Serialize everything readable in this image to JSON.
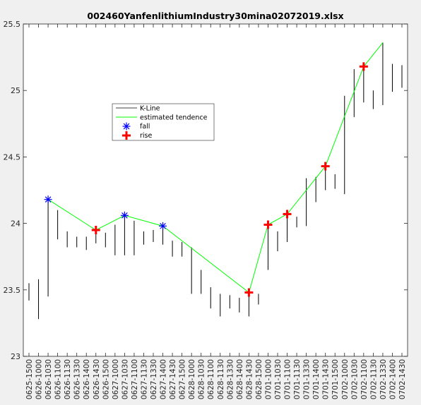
{
  "chart_data": {
    "type": "line",
    "title": "002460YanfenlithiumIndustry30mina02072019.xlsx",
    "xlabel": "",
    "ylabel": "",
    "ylim": [
      23,
      25.5
    ],
    "yticks": [
      23,
      23.5,
      24,
      24.5,
      25,
      25.5
    ],
    "ytick_labels": [
      "23",
      "23.5",
      "24",
      "24.5",
      "25",
      "25.5"
    ],
    "grid": false,
    "legend_placement": "upper-left-center",
    "categories": [
      "0625-1500",
      "0626-1000",
      "0626-1030",
      "0626-1100",
      "0626-1130",
      "0626-1330",
      "0626-1400",
      "0626-1430",
      "0626-1500",
      "0627-1000",
      "0627-1030",
      "0627-1100",
      "0627-1130",
      "0627-1330",
      "0627-1400",
      "0627-1430",
      "0627-1500",
      "0628-1000",
      "0628-1030",
      "0628-1100",
      "0628-1130",
      "0628-1330",
      "0628-1400",
      "0628-1430",
      "0628-1500",
      "0701-1000",
      "0701-1030",
      "0701-1100",
      "0701-1130",
      "0701-1330",
      "0701-1400",
      "0701-1430",
      "0701-1500",
      "0702-1000",
      "0702-1030",
      "0702-1100",
      "0702-1130",
      "0702-1330",
      "0702-1400",
      "0702-1430"
    ],
    "kline": [
      [
        23.42,
        23.55
      ],
      [
        23.28,
        23.58
      ],
      [
        23.45,
        24.18
      ],
      [
        23.88,
        24.1
      ],
      [
        23.82,
        23.94
      ],
      [
        23.82,
        23.9
      ],
      [
        23.8,
        23.9
      ],
      [
        23.85,
        23.98
      ],
      [
        23.82,
        23.93
      ],
      [
        23.76,
        23.99
      ],
      [
        23.76,
        24.05
      ],
      [
        23.76,
        24.02
      ],
      [
        23.84,
        23.94
      ],
      [
        23.86,
        23.95
      ],
      [
        23.84,
        23.98
      ],
      [
        23.75,
        23.87
      ],
      [
        23.75,
        23.86
      ],
      [
        23.47,
        23.82
      ],
      [
        23.47,
        23.65
      ],
      [
        23.36,
        23.52
      ],
      [
        23.3,
        23.47
      ],
      [
        23.36,
        23.46
      ],
      [
        23.33,
        23.44
      ],
      [
        23.3,
        23.48
      ],
      [
        23.39,
        23.47
      ],
      [
        23.65,
        24.0
      ],
      [
        23.79,
        23.94
      ],
      [
        23.86,
        24.1
      ],
      [
        23.97,
        24.05
      ],
      [
        23.98,
        24.34
      ],
      [
        24.16,
        24.35
      ],
      [
        24.25,
        24.43
      ],
      [
        24.26,
        24.37
      ],
      [
        24.22,
        24.96
      ],
      [
        24.8,
        25.16
      ],
      [
        24.91,
        25.17
      ],
      [
        24.86,
        25.0
      ],
      [
        24.89,
        25.36
      ],
      [
        24.99,
        25.2
      ],
      [
        25.02,
        25.19
      ]
    ],
    "series": [
      {
        "name": "K-Line",
        "color": "#000000"
      },
      {
        "name": "estimated tendence",
        "color": "#00ff00",
        "points": [
          [
            2,
            24.18
          ],
          [
            7,
            23.95
          ],
          [
            10,
            24.06
          ],
          [
            14,
            23.98
          ],
          [
            23,
            23.48
          ],
          [
            25,
            23.99
          ],
          [
            27,
            24.07
          ],
          [
            31,
            24.43
          ],
          [
            35,
            25.18
          ],
          [
            37,
            25.36
          ]
        ]
      },
      {
        "name": "fall",
        "color": "#0000ff",
        "marker": "asterisk",
        "points": [
          [
            2,
            24.18
          ],
          [
            10,
            24.06
          ],
          [
            14,
            23.98
          ]
        ]
      },
      {
        "name": "rise",
        "color": "#ff0000",
        "marker": "plus",
        "points": [
          [
            7,
            23.95
          ],
          [
            23,
            23.48
          ],
          [
            25,
            23.99
          ],
          [
            27,
            24.07
          ],
          [
            31,
            24.43
          ],
          [
            35,
            25.18
          ]
        ]
      }
    ]
  }
}
